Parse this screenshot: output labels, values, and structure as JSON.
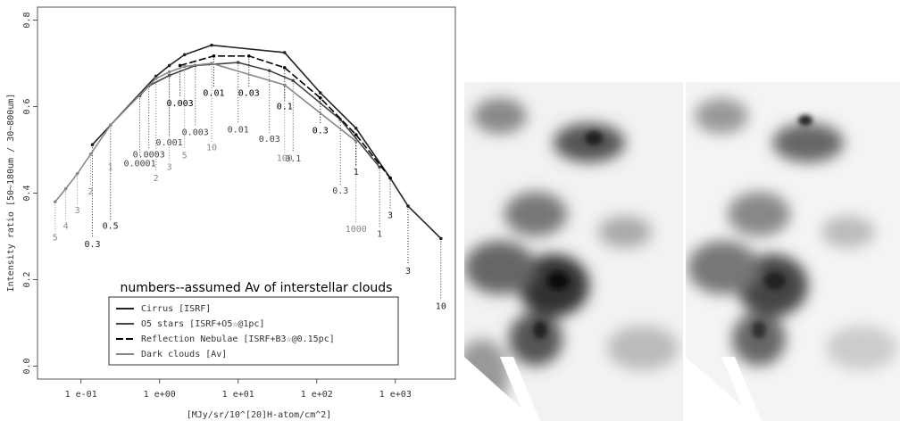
{
  "chart_data": {
    "type": "line",
    "x_label": "[MJy/sr/10^[20]H-atom/cm^2]",
    "y_label": "Intensity ratio [50~180um / 30~800um]",
    "xscale": "log",
    "xlim": [
      0.028,
      5800
    ],
    "ylim": [
      -0.03,
      0.83
    ],
    "xticks": [
      {
        "value": 0.1,
        "label": "1  e-01"
      },
      {
        "value": 1,
        "label": "1  e+00"
      },
      {
        "value": 10,
        "label": "1  e+01"
      },
      {
        "value": 100,
        "label": "1  e+02"
      },
      {
        "value": 1000,
        "label": "1  e+03"
      }
    ],
    "yticks": [
      {
        "value": 0,
        "label": "0.0"
      },
      {
        "value": 0.2,
        "label": "0.2"
      },
      {
        "value": 0.4,
        "label": "0.4"
      },
      {
        "value": 0.6,
        "label": "0.6"
      },
      {
        "value": 0.8,
        "label": "0.8"
      }
    ],
    "legend_title": "numbers--assumed Av of interstellar clouds",
    "legend_position": "bottom",
    "series": [
      {
        "name": "Cirrus [ISRF]",
        "color": "#222222",
        "line_style": "solid",
        "x": [
          0.14,
          0.237,
          0.9,
          1.33,
          2.08,
          4.6,
          39,
          111,
          316,
          860,
          1450,
          3800
        ],
        "values": [
          0.512,
          0.557,
          0.67,
          0.695,
          0.72,
          0.742,
          0.725,
          0.632,
          0.55,
          0.435,
          0.37,
          0.295
        ],
        "labels": [
          "0.3",
          "0.5",
          null,
          null,
          null,
          null,
          null,
          null,
          null,
          "3",
          "3",
          "10"
        ],
        "label_y": [
          0.281,
          0.324,
          null,
          null,
          null,
          null,
          null,
          null,
          null,
          0.348,
          0.22,
          0.138
        ]
      },
      {
        "name": "O5 stars [ISRF+O5☆@1pc]",
        "color": "#444444",
        "line_style": "solid",
        "x": [
          0.56,
          0.73,
          1.33,
          2.85,
          10,
          25,
          50,
          200,
          630
        ],
        "values": [
          0.625,
          0.648,
          0.672,
          0.695,
          0.702,
          0.683,
          0.66,
          0.57,
          0.46
        ],
        "labels": [
          "0.0001",
          "0.0003",
          "0.001",
          "0.003",
          "0.01",
          "0.03",
          "0.1",
          "0.3",
          "1"
        ],
        "label_y": [
          0.468,
          0.489,
          0.517,
          0.54,
          0.546,
          0.525,
          0.479,
          0.405,
          0.305
        ]
      },
      {
        "name": "Reflection Nebulae [ISRF+B3☆@0.15pc]",
        "color": "#000000",
        "line_style": "dashed",
        "x": [
          1.82,
          4.9,
          13.7,
          39,
          111,
          316,
          860
        ],
        "values": [
          0.695,
          0.717,
          0.717,
          0.69,
          0.62,
          0.535,
          0.435
        ],
        "labels": [
          "0.003",
          "0.01",
          "0.03",
          "0.1",
          "0.3",
          "1",
          null
        ],
        "label_y": [
          0.607,
          0.631,
          0.631,
          0.6,
          0.544,
          0.448,
          null
        ]
      },
      {
        "name": "Dark clouds [Av]",
        "color": "#888888",
        "line_style": "solid",
        "x": [
          0.047,
          0.064,
          0.09,
          0.133,
          0.237,
          0.9,
          1.33,
          2.08,
          4.6,
          39,
          316
        ],
        "values": [
          0.38,
          0.41,
          0.445,
          0.49,
          0.557,
          0.665,
          0.68,
          0.693,
          0.7,
          0.65,
          0.52
        ],
        "labels": [
          "5",
          "4",
          "3",
          "2",
          "1",
          "2",
          "3",
          "5",
          "10",
          "100",
          "1000"
        ],
        "label_y": [
          0.297,
          0.324,
          0.36,
          0.403,
          0.46,
          0.434,
          0.46,
          0.487,
          0.505,
          0.48,
          0.316
        ]
      }
    ]
  }
}
